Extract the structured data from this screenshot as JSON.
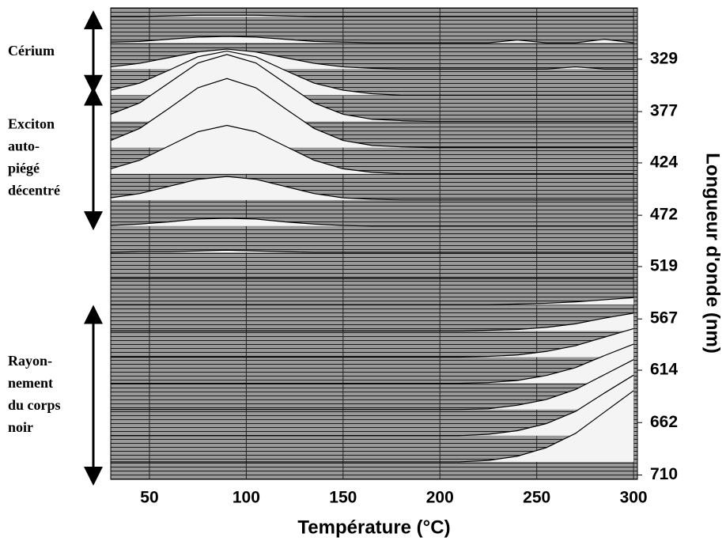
{
  "chart_data": {
    "type": "ridgeline",
    "xlabel": "Température (°C)",
    "ylabel": "Longueur d'onde (nm)",
    "xlim": [
      30,
      302
    ],
    "ylim": [
      282,
      714
    ],
    "xticks": [
      50,
      100,
      150,
      200,
      250,
      300
    ],
    "yticks": [
      329,
      377,
      424,
      472,
      519,
      567,
      614,
      662,
      710
    ],
    "line_color": "#000000",
    "fill_color": "#f4f4f4",
    "x": [
      30,
      45,
      60,
      75,
      90,
      105,
      120,
      135,
      150,
      165,
      180,
      195,
      210,
      225,
      240,
      255,
      270,
      285,
      300
    ],
    "rows": [
      {
        "wavelength": 290,
        "values": [
          0,
          0,
          0.01,
          0.02,
          0.02,
          0.02,
          0.01,
          0,
          0,
          0,
          0,
          0,
          0,
          0,
          0,
          0,
          0,
          0,
          0
        ]
      },
      {
        "wavelength": 314,
        "values": [
          0.01,
          0.02,
          0.05,
          0.08,
          0.09,
          0.08,
          0.05,
          0.02,
          0.01,
          0,
          0,
          0,
          0,
          0,
          0.04,
          0,
          0,
          0.05,
          0
        ]
      },
      {
        "wavelength": 338,
        "values": [
          0.03,
          0.08,
          0.16,
          0.24,
          0.28,
          0.24,
          0.16,
          0.08,
          0.03,
          0.01,
          0,
          0,
          0,
          0,
          0,
          0,
          0.03,
          0,
          0
        ]
      },
      {
        "wavelength": 362,
        "values": [
          0.07,
          0.17,
          0.35,
          0.54,
          0.62,
          0.54,
          0.35,
          0.17,
          0.07,
          0.02,
          0,
          0,
          0,
          0,
          0,
          0,
          0,
          0,
          0
        ]
      },
      {
        "wavelength": 386,
        "values": [
          0.1,
          0.26,
          0.54,
          0.82,
          0.94,
          0.82,
          0.54,
          0.26,
          0.1,
          0.03,
          0.01,
          0,
          0,
          0,
          0,
          0,
          0,
          0,
          0
        ]
      },
      {
        "wavelength": 410,
        "values": [
          0.1,
          0.27,
          0.55,
          0.84,
          0.97,
          0.84,
          0.55,
          0.27,
          0.1,
          0.03,
          0.01,
          0,
          0,
          0,
          0,
          0,
          0,
          0,
          0
        ]
      },
      {
        "wavelength": 434,
        "values": [
          0.07,
          0.19,
          0.39,
          0.59,
          0.68,
          0.59,
          0.39,
          0.19,
          0.07,
          0.02,
          0,
          0,
          0,
          0,
          0,
          0,
          0,
          0,
          0
        ]
      },
      {
        "wavelength": 458,
        "values": [
          0.03,
          0.09,
          0.19,
          0.29,
          0.33,
          0.29,
          0.19,
          0.09,
          0.03,
          0.01,
          0,
          0,
          0,
          0,
          0,
          0,
          0,
          0,
          0
        ]
      },
      {
        "wavelength": 482,
        "values": [
          0.01,
          0.03,
          0.06,
          0.1,
          0.11,
          0.1,
          0.06,
          0.03,
          0.01,
          0,
          0,
          0,
          0,
          0,
          0,
          0,
          0,
          0,
          0
        ]
      },
      {
        "wavelength": 506,
        "values": [
          0,
          0.01,
          0.01,
          0.02,
          0.03,
          0.02,
          0.01,
          0,
          0,
          0,
          0,
          0,
          0,
          0,
          0,
          0,
          0,
          0,
          0
        ]
      },
      {
        "wavelength": 530,
        "values": [
          0,
          0,
          0,
          0,
          0,
          0,
          0,
          0,
          0,
          0,
          0,
          0,
          0,
          0,
          0,
          0,
          0,
          0,
          0
        ]
      },
      {
        "wavelength": 554,
        "values": [
          0,
          0,
          0,
          0,
          0,
          0,
          0,
          0,
          0,
          0,
          0,
          0,
          0,
          0,
          0.01,
          0.02,
          0.04,
          0.07,
          0.1
        ]
      },
      {
        "wavelength": 578,
        "values": [
          0,
          0,
          0,
          0,
          0,
          0,
          0,
          0,
          0,
          0,
          0,
          0,
          0,
          0.01,
          0.02,
          0.05,
          0.1,
          0.18,
          0.25
        ]
      },
      {
        "wavelength": 602,
        "values": [
          0,
          0,
          0,
          0,
          0,
          0,
          0,
          0,
          0,
          0,
          0,
          0,
          0,
          0.01,
          0.03,
          0.08,
          0.16,
          0.28,
          0.4
        ]
      },
      {
        "wavelength": 626,
        "values": [
          0,
          0,
          0,
          0,
          0,
          0,
          0,
          0,
          0,
          0,
          0,
          0,
          0,
          0.01,
          0.04,
          0.11,
          0.22,
          0.39,
          0.55
        ]
      },
      {
        "wavelength": 650,
        "values": [
          0,
          0,
          0,
          0,
          0,
          0,
          0,
          0,
          0,
          0,
          0,
          0,
          0,
          0.01,
          0.06,
          0.14,
          0.28,
          0.49,
          0.7
        ]
      },
      {
        "wavelength": 674,
        "values": [
          0,
          0,
          0,
          0,
          0,
          0,
          0,
          0,
          0,
          0,
          0,
          0,
          0,
          0.02,
          0.07,
          0.17,
          0.34,
          0.6,
          0.85
        ]
      },
      {
        "wavelength": 698,
        "values": [
          0,
          0,
          0,
          0,
          0,
          0,
          0,
          0,
          0,
          0,
          0,
          0,
          0,
          0.02,
          0.08,
          0.2,
          0.4,
          0.7,
          1
        ]
      }
    ],
    "annotations": [
      {
        "lines": [
          "Cérium"
        ],
        "range": [
          290,
          355
        ]
      },
      {
        "lines": [
          "Exciton",
          "auto-",
          "piégé",
          "décentré"
        ],
        "range": [
          360,
          480
        ]
      },
      {
        "lines": [
          "Rayon-",
          "nement",
          "du corps",
          "noir"
        ],
        "range": [
          560,
          714
        ]
      }
    ]
  }
}
